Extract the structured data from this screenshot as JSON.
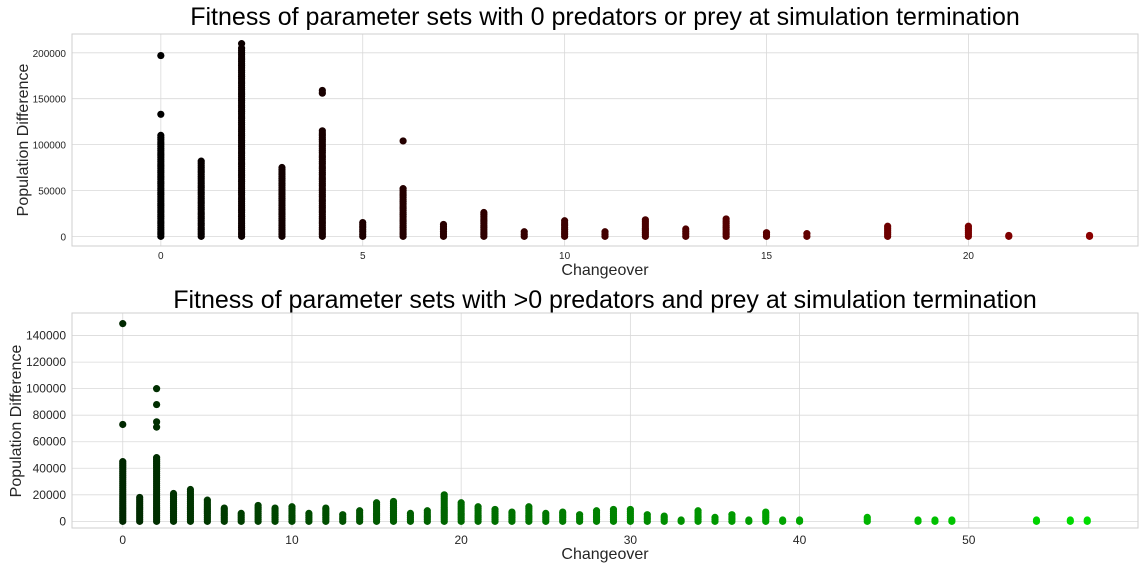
{
  "chart_data": [
    {
      "type": "scatter",
      "title": "Fitness of parameter sets with 0 predators or prey at simulation termination",
      "xlabel": "Changeover",
      "ylabel": "Population Difference",
      "xlim": [
        -2.2,
        24.2
      ],
      "ylim": [
        -10500,
        220500
      ],
      "xticks": [
        0,
        5,
        10,
        15,
        20
      ],
      "yticks": [
        0,
        50000,
        100000,
        150000,
        200000
      ],
      "grid": true,
      "color_from": "#000000",
      "color_to": "#8b0000",
      "columns": [
        {
          "x": 0,
          "max": 110000,
          "outliers": [
            197000,
            133000
          ]
        },
        {
          "x": 1,
          "max": 82000
        },
        {
          "x": 2,
          "max": 205000,
          "outliers": [
            210000
          ]
        },
        {
          "x": 3,
          "max": 75000
        },
        {
          "x": 4,
          "max": 115000,
          "outliers": [
            159000,
            156000
          ]
        },
        {
          "x": 5,
          "max": 15000
        },
        {
          "x": 6,
          "max": 52000,
          "outliers": [
            104000
          ]
        },
        {
          "x": 7,
          "max": 13000
        },
        {
          "x": 8,
          "max": 26000
        },
        {
          "x": 9,
          "max": 5000
        },
        {
          "x": 10,
          "max": 17000
        },
        {
          "x": 11,
          "max": 5000
        },
        {
          "x": 12,
          "max": 18000
        },
        {
          "x": 13,
          "max": 8000
        },
        {
          "x": 14,
          "max": 19000
        },
        {
          "x": 15,
          "max": 4000
        },
        {
          "x": 16,
          "max": 3000
        },
        {
          "x": 18,
          "max": 11000
        },
        {
          "x": 20,
          "max": 11000
        },
        {
          "x": 21,
          "max": 1000
        },
        {
          "x": 23,
          "max": 1000
        }
      ]
    },
    {
      "type": "scatter",
      "title": "Fitness of parameter sets with >0 predators and prey at simulation termination",
      "xlabel": "Changeover",
      "ylabel": "Population Difference",
      "xlim": [
        -3,
        60
      ],
      "ylim": [
        -5000,
        157000
      ],
      "xticks": [
        0,
        10,
        20,
        30,
        40,
        50
      ],
      "yticks": [
        0,
        20000,
        40000,
        60000,
        80000,
        100000,
        120000,
        140000
      ],
      "grid": true,
      "color_from": "#002800",
      "color_to": "#00dd00",
      "columns": [
        {
          "x": 0,
          "max": 45000,
          "outliers": [
            149000,
            73000
          ]
        },
        {
          "x": 1,
          "max": 18000
        },
        {
          "x": 2,
          "max": 48000,
          "outliers": [
            100000,
            88000,
            75000,
            71000
          ]
        },
        {
          "x": 3,
          "max": 21000
        },
        {
          "x": 4,
          "max": 24000
        },
        {
          "x": 5,
          "max": 16000
        },
        {
          "x": 6,
          "max": 10000
        },
        {
          "x": 7,
          "max": 6000
        },
        {
          "x": 8,
          "max": 12000
        },
        {
          "x": 9,
          "max": 10000
        },
        {
          "x": 10,
          "max": 11000
        },
        {
          "x": 11,
          "max": 6000
        },
        {
          "x": 12,
          "max": 10000
        },
        {
          "x": 13,
          "max": 5000
        },
        {
          "x": 14,
          "max": 8000
        },
        {
          "x": 15,
          "max": 14000
        },
        {
          "x": 16,
          "max": 15000
        },
        {
          "x": 17,
          "max": 6000
        },
        {
          "x": 18,
          "max": 8000
        },
        {
          "x": 19,
          "max": 20000
        },
        {
          "x": 20,
          "max": 14000
        },
        {
          "x": 21,
          "max": 11000
        },
        {
          "x": 22,
          "max": 9000
        },
        {
          "x": 23,
          "max": 7000
        },
        {
          "x": 24,
          "max": 11000
        },
        {
          "x": 25,
          "max": 6000
        },
        {
          "x": 26,
          "max": 7000
        },
        {
          "x": 27,
          "max": 5000
        },
        {
          "x": 28,
          "max": 8000
        },
        {
          "x": 29,
          "max": 9000
        },
        {
          "x": 30,
          "max": 9000
        },
        {
          "x": 31,
          "max": 5000
        },
        {
          "x": 32,
          "max": 4000
        },
        {
          "x": 33,
          "max": 1000
        },
        {
          "x": 34,
          "max": 8000
        },
        {
          "x": 35,
          "max": 3000
        },
        {
          "x": 36,
          "max": 5000
        },
        {
          "x": 37,
          "max": 1000
        },
        {
          "x": 38,
          "max": 7000
        },
        {
          "x": 39,
          "max": 1000
        },
        {
          "x": 40,
          "max": 1000
        },
        {
          "x": 44,
          "max": 3000
        },
        {
          "x": 47,
          "max": 1000
        },
        {
          "x": 48,
          "max": 1000
        },
        {
          "x": 49,
          "max": 1000
        },
        {
          "x": 54,
          "max": 1000
        },
        {
          "x": 56,
          "max": 1000
        },
        {
          "x": 57,
          "max": 1000
        }
      ]
    }
  ]
}
